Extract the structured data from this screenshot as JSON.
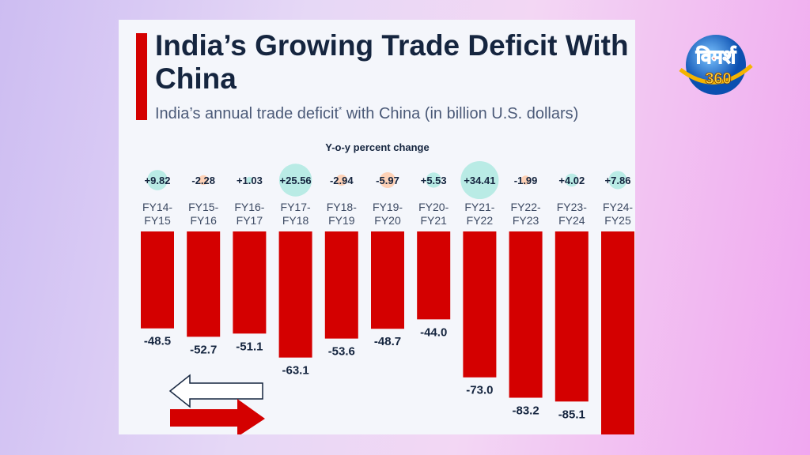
{
  "header": {
    "title": "India’s Growing Trade Deficit With China",
    "subtitle": "India’s annual trade deficit",
    "subtitle_mark": "*",
    "subtitle_rest": " with China (in billion U.S. dollars)"
  },
  "logo": {
    "text": "विमर्श 360"
  },
  "chart_data": {
    "type": "bar",
    "yoy_label": "Y-o-y percent change",
    "categories": [
      "FY14-\nFY15",
      "FY15-\nFY16",
      "FY16-\nFY17",
      "FY17-\nFY18",
      "FY18-\nFY19",
      "FY19-\nFY20",
      "FY20-\nFY21",
      "FY21-\nFY22",
      "FY22-\nFY23",
      "FY23-\nFY24",
      "FY24-\nFY25"
    ],
    "values": [
      -48.5,
      -52.7,
      -51.1,
      -63.1,
      -53.6,
      -48.7,
      -44.0,
      -73.0,
      -83.2,
      -85.1,
      null
    ],
    "value_labels": [
      "-48.5",
      "-52.7",
      "-51.1",
      "-63.1",
      "-53.6",
      "-48.7",
      "-44.0",
      "-73.0",
      "-83.2",
      "-85.1",
      ""
    ],
    "yoy_change": [
      9.82,
      -2.28,
      1.03,
      25.56,
      -2.94,
      -5.97,
      5.53,
      34.41,
      -1.99,
      4.02,
      7.86
    ],
    "yoy_labels": [
      "+9.82",
      "-2.28",
      "+1.03",
      "+25.56",
      "-2.94",
      "-5.97",
      "+5.53",
      "+34.41",
      "-1.99",
      "+4.02",
      "+7.86"
    ],
    "colors": {
      "bar": "#d40000",
      "positive_bubble": "#b9ebe5",
      "negative_bubble": "#fdd1b6",
      "text": "#15253f"
    },
    "grid": false
  }
}
